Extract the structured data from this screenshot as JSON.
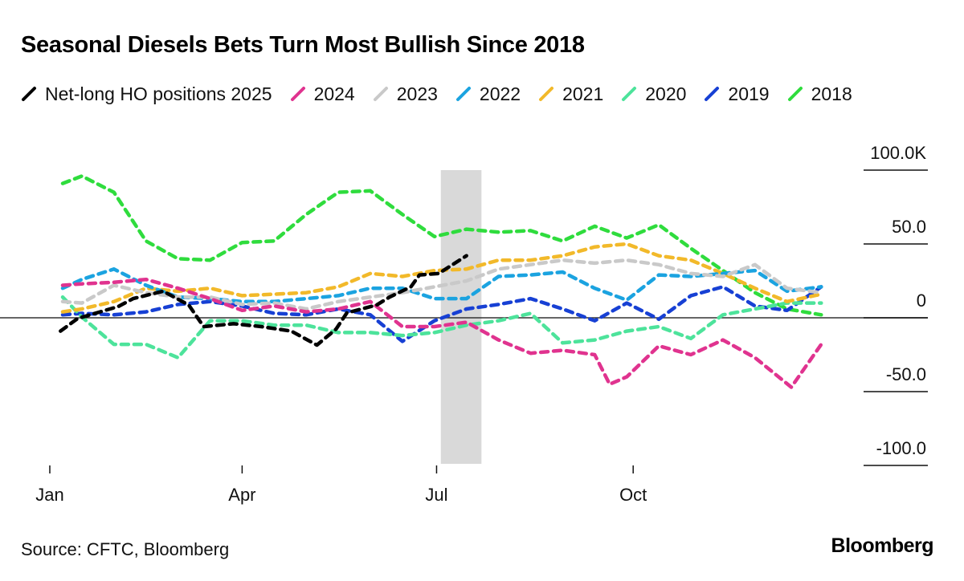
{
  "chart_data": {
    "type": "line",
    "title": "Seasonal Diesels Bets Turn Most Bullish Since 2018",
    "source": "Source: CFTC, Bloomberg",
    "logo": "Bloomberg",
    "xlabel": "",
    "ylabel": "",
    "x_unit": "day of year",
    "xlim": [
      0,
      365
    ],
    "ylim": [
      -100,
      100
    ],
    "xticks": [
      {
        "day": 0,
        "label": "Jan"
      },
      {
        "day": 90,
        "label": "Apr"
      },
      {
        "day": 181,
        "label": "Jul"
      },
      {
        "day": 273,
        "label": "Oct"
      }
    ],
    "yticks": [
      {
        "value": 100,
        "label": "100.0K"
      },
      {
        "value": 50,
        "label": "50.0"
      },
      {
        "value": 0,
        "label": "0"
      },
      {
        "value": -50,
        "label": "-50.0"
      },
      {
        "value": -100,
        "label": "-100.0"
      }
    ],
    "highlight_days": [
      183,
      202
    ],
    "highlight_color": "#d9d9d9",
    "grid": false,
    "legend_position": "top",
    "series": [
      {
        "name": "Net-long HO positions 2025",
        "color": "#000000",
        "x": [
          5,
          13,
          32,
          39,
          53,
          65,
          72,
          86,
          99,
          113,
          125,
          134,
          139,
          153,
          159,
          169,
          173,
          182,
          195
        ],
        "values": [
          -9,
          -0.5,
          7.6,
          13,
          18,
          8.7,
          -6,
          -4,
          -6,
          -9,
          -18.5,
          -7.6,
          3.3,
          8.7,
          14,
          21,
          29,
          30,
          42
        ]
      },
      {
        "name": "2024",
        "color": "#e0338f",
        "x": [
          6,
          15,
          30,
          45,
          60,
          75,
          90,
          105,
          120,
          135,
          150,
          165,
          180,
          195,
          210,
          225,
          240,
          255,
          262,
          270,
          285,
          300,
          315,
          330,
          347,
          361
        ],
        "values": [
          22,
          23,
          24,
          26,
          20,
          13,
          5,
          8,
          4,
          6,
          11,
          -6,
          -6,
          -3,
          -15,
          -24,
          -22,
          -25,
          -45,
          -40,
          -19,
          -25,
          -15,
          -27,
          -47,
          -18
        ]
      },
      {
        "name": "2023",
        "color": "#c9c9c9",
        "x": [
          6,
          15,
          30,
          45,
          60,
          75,
          90,
          105,
          120,
          135,
          150,
          165,
          180,
          195,
          210,
          225,
          240,
          255,
          270,
          285,
          300,
          315,
          330,
          345,
          361
        ],
        "values": [
          11,
          10,
          22,
          17,
          14,
          14,
          9,
          10,
          6,
          11,
          14,
          17,
          21,
          25,
          33,
          36,
          39,
          37,
          39,
          36,
          30,
          28,
          36,
          20,
          17
        ]
      },
      {
        "name": "2022",
        "color": "#1ba3e0",
        "x": [
          6,
          15,
          30,
          45,
          60,
          75,
          90,
          105,
          120,
          135,
          150,
          165,
          180,
          195,
          210,
          225,
          240,
          255,
          270,
          285,
          300,
          315,
          330,
          345,
          361
        ],
        "values": [
          20,
          26,
          33,
          22,
          14,
          13,
          11,
          11,
          13,
          15,
          20,
          20,
          13,
          13,
          28,
          29,
          31,
          20,
          12,
          29,
          28,
          30,
          32,
          18,
          21
        ]
      },
      {
        "name": "2021",
        "color": "#f2b92a",
        "x": [
          6,
          15,
          30,
          45,
          60,
          75,
          90,
          105,
          120,
          135,
          150,
          165,
          180,
          195,
          210,
          225,
          240,
          255,
          270,
          285,
          300,
          315,
          330,
          345,
          361
        ],
        "values": [
          4,
          6,
          11,
          20,
          18,
          20,
          15,
          16,
          17,
          21,
          30,
          28,
          32,
          33,
          39,
          39,
          42,
          48,
          50,
          42,
          39,
          30,
          20,
          11,
          16
        ]
      },
      {
        "name": "2020",
        "color": "#4de39b",
        "x": [
          6,
          15,
          30,
          45,
          60,
          75,
          90,
          105,
          120,
          135,
          150,
          165,
          180,
          195,
          210,
          225,
          240,
          255,
          270,
          285,
          300,
          315,
          330,
          345,
          361
        ],
        "values": [
          14,
          0.5,
          -18,
          -18,
          -27,
          -2,
          -2,
          -5,
          -5,
          -10,
          -10,
          -12,
          -10,
          -5,
          -2,
          3,
          -17,
          -15,
          -9,
          -6,
          -14,
          2,
          6,
          10,
          10
        ]
      },
      {
        "name": "2019",
        "color": "#1740d4",
        "x": [
          6,
          15,
          30,
          45,
          60,
          75,
          90,
          105,
          120,
          135,
          150,
          165,
          180,
          195,
          210,
          225,
          240,
          255,
          270,
          285,
          300,
          315,
          330,
          345,
          361
        ],
        "values": [
          2,
          3,
          2,
          4,
          9,
          11,
          8,
          3,
          2,
          6,
          2,
          -16,
          -2,
          6,
          9,
          13,
          6,
          -2,
          10,
          -1,
          15,
          21,
          8,
          5,
          21
        ]
      },
      {
        "name": "2018",
        "color": "#2fdc3d",
        "x": [
          6,
          15,
          30,
          45,
          60,
          75,
          90,
          105,
          120,
          135,
          150,
          165,
          180,
          195,
          210,
          225,
          240,
          255,
          270,
          285,
          300,
          315,
          330,
          345,
          361
        ],
        "values": [
          91,
          96,
          85,
          52,
          40,
          39,
          51,
          52,
          70,
          85,
          86,
          70,
          55,
          60,
          58,
          59,
          52,
          62,
          54,
          63,
          47,
          32,
          17,
          6,
          2
        ]
      }
    ]
  }
}
